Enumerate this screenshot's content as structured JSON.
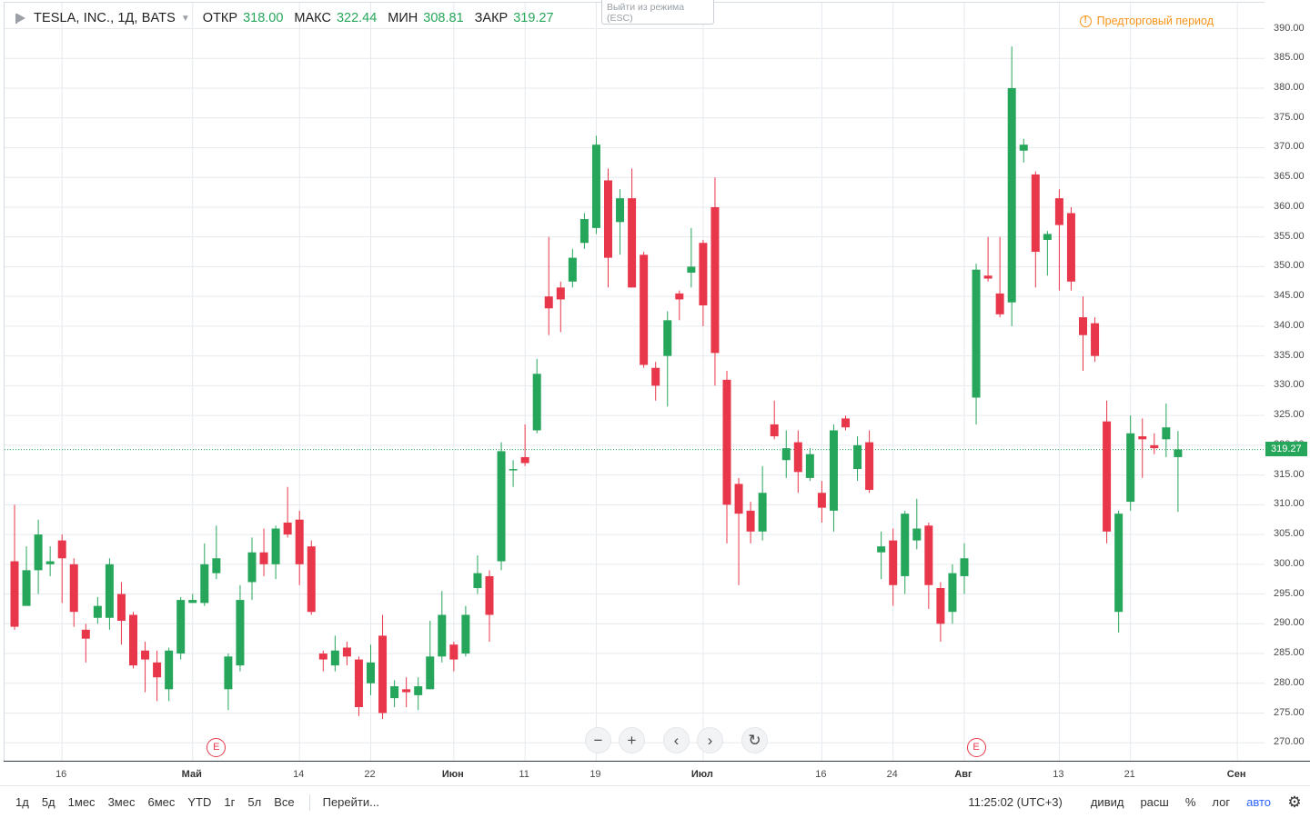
{
  "header": {
    "symbol": "TESLA, INC., 1Д, BATS",
    "ohlc": [
      {
        "label": "ОТКР",
        "value": "318.00"
      },
      {
        "label": "МАКС",
        "value": "322.44"
      },
      {
        "label": "МИН",
        "value": "308.81"
      },
      {
        "label": "ЗАКР",
        "value": "319.27"
      }
    ],
    "exit_tip": "Выйти из режима (ESC)",
    "premarket": "Предторговый период",
    "premarket_icon": "warning-icon"
  },
  "price_axis": {
    "labels": [
      "390.00",
      "385.00",
      "380.00",
      "375.00",
      "370.00",
      "365.00",
      "360.00",
      "355.00",
      "350.00",
      "345.00",
      "340.00",
      "335.00",
      "330.00",
      "325.00",
      "320.00",
      "315.00",
      "310.00",
      "305.00",
      "300.00",
      "295.00",
      "290.00",
      "285.00",
      "280.00",
      "275.00",
      "270.00"
    ],
    "last_price": "319.27"
  },
  "time_axis": {
    "labels": [
      {
        "text": "16",
        "index": 4,
        "bold": false
      },
      {
        "text": "Май",
        "index": 15,
        "bold": true
      },
      {
        "text": "14",
        "index": 24,
        "bold": false
      },
      {
        "text": "22",
        "index": 30,
        "bold": false
      },
      {
        "text": "Июн",
        "index": 37,
        "bold": true
      },
      {
        "text": "11",
        "index": 43,
        "bold": false
      },
      {
        "text": "19",
        "index": 49,
        "bold": false
      },
      {
        "text": "Июл",
        "index": 58,
        "bold": true
      },
      {
        "text": "16",
        "index": 68,
        "bold": false
      },
      {
        "text": "24",
        "index": 74,
        "bold": false
      },
      {
        "text": "Авг",
        "index": 80,
        "bold": true
      },
      {
        "text": "13",
        "index": 88,
        "bold": false
      },
      {
        "text": "21",
        "index": 94,
        "bold": false
      },
      {
        "text": "Сен",
        "index": 103,
        "bold": true
      }
    ]
  },
  "earnings_markers": [
    {
      "label": "E",
      "index": 17
    },
    {
      "label": "E",
      "index": 81
    }
  ],
  "nav_controls": [
    {
      "name": "zoom-out-button",
      "glyph": "−"
    },
    {
      "name": "zoom-in-button",
      "glyph": "+"
    },
    {
      "name": "scroll-left-button",
      "glyph": "‹"
    },
    {
      "name": "scroll-right-button",
      "glyph": "›"
    },
    {
      "name": "reset-button",
      "glyph": "↻"
    }
  ],
  "toolbar": {
    "ranges": [
      "1д",
      "5д",
      "1мес",
      "3мес",
      "6мес",
      "YTD",
      "1г",
      "5л",
      "Все"
    ],
    "goto": "Перейти...",
    "time": "11:25:02 (UTC+3)",
    "options": [
      {
        "label": "дивид",
        "active": false
      },
      {
        "label": "расш",
        "active": false
      },
      {
        "label": "%",
        "active": false
      },
      {
        "label": "лог",
        "active": false
      },
      {
        "label": "авто",
        "active": true
      }
    ],
    "settings_icon": "gear-icon"
  },
  "colors": {
    "up": "#26a65b",
    "down": "#e8374a",
    "grid": "#e6eaee",
    "highlight": "#ffff66",
    "accent": "#2962ff",
    "premarket": "#f7931a"
  },
  "chart_data": {
    "type": "candlestick",
    "symbol": "TESLA, INC.",
    "interval": "1Д",
    "ylim": [
      268,
      392
    ],
    "last_price": 319.27,
    "highlighted_index": 100,
    "candles": [
      [
        300.5,
        289.5,
        310.0,
        289.0
      ],
      [
        293.0,
        299.0,
        303.0,
        293.5
      ],
      [
        299.0,
        305.0,
        307.5,
        295.0
      ],
      [
        300.0,
        300.5,
        303.0,
        298.0
      ],
      [
        304.0,
        301.0,
        305.0,
        293.5
      ],
      [
        300.0,
        292.0,
        301.0,
        289.5
      ],
      [
        289.0,
        287.5,
        290.0,
        283.5
      ],
      [
        291.0,
        293.0,
        294.5,
        290.0
      ],
      [
        291.0,
        300.0,
        301.0,
        289.0
      ],
      [
        295.0,
        290.5,
        297.0,
        286.5
      ],
      [
        291.5,
        283.0,
        292.0,
        282.5
      ],
      [
        285.5,
        284.0,
        287.0,
        278.5
      ],
      [
        283.5,
        281.0,
        285.5,
        277.0
      ],
      [
        279.0,
        285.5,
        286.0,
        277.0
      ],
      [
        285.0,
        294.0,
        294.5,
        284.0
      ],
      [
        293.5,
        294.0,
        295.0,
        293.5
      ],
      [
        293.5,
        300.0,
        303.5,
        293.0
      ],
      [
        298.5,
        301.0,
        306.5,
        297.5
      ],
      [
        279.0,
        284.5,
        285.0,
        275.5
      ],
      [
        283.0,
        294.0,
        296.5,
        282.0
      ],
      [
        297.0,
        302.0,
        304.5,
        294.0
      ],
      [
        302.0,
        300.0,
        306.0,
        298.0
      ],
      [
        300.0,
        306.0,
        306.5,
        297.5
      ],
      [
        307.0,
        305.0,
        313.0,
        304.5
      ],
      [
        307.5,
        300.0,
        309.0,
        296.5
      ],
      [
        303.0,
        292.0,
        304.0,
        291.5
      ],
      [
        285.0,
        284.0,
        285.5,
        282.0
      ],
      [
        283.0,
        285.5,
        288.0,
        282.0
      ],
      [
        286.0,
        284.5,
        287.0,
        283.0
      ],
      [
        284.0,
        276.0,
        284.5,
        274.5
      ],
      [
        280.0,
        283.5,
        286.5,
        278.0
      ],
      [
        288.0,
        275.0,
        291.5,
        274.0
      ],
      [
        277.5,
        279.5,
        280.5,
        276.0
      ],
      [
        279.0,
        278.5,
        281.0,
        276.0
      ],
      [
        278.0,
        279.5,
        281.0,
        275.5
      ],
      [
        279.0,
        284.5,
        290.5,
        279.0
      ],
      [
        284.5,
        291.5,
        295.5,
        283.5
      ],
      [
        286.5,
        284.0,
        287.0,
        282.0
      ],
      [
        285.0,
        291.5,
        293.0,
        284.5
      ],
      [
        296.0,
        298.5,
        301.5,
        295.0
      ],
      [
        298.0,
        291.5,
        299.0,
        287.0
      ],
      [
        300.5,
        319.0,
        320.5,
        299.0
      ],
      [
        316.0,
        316.0,
        317.5,
        313.0
      ],
      [
        318.0,
        317.0,
        323.5,
        316.5
      ],
      [
        322.5,
        332.0,
        334.5,
        322.0
      ],
      [
        345.0,
        343.0,
        355.0,
        338.5
      ],
      [
        346.5,
        344.5,
        347.5,
        339.0
      ],
      [
        347.5,
        351.5,
        353.0,
        346.5
      ],
      [
        354.0,
        358.0,
        359.0,
        353.0
      ],
      [
        356.5,
        370.5,
        372.0,
        355.5
      ],
      [
        364.5,
        351.5,
        366.5,
        346.5
      ],
      [
        357.5,
        361.5,
        363.0,
        352.0
      ],
      [
        361.5,
        346.5,
        366.5,
        346.5
      ],
      [
        352.0,
        333.5,
        352.5,
        333.0
      ],
      [
        333.0,
        330.0,
        334.0,
        327.5
      ],
      [
        335.0,
        341.0,
        342.5,
        326.5
      ],
      [
        345.5,
        344.5,
        346.0,
        341.0
      ],
      [
        349.0,
        350.0,
        356.5,
        346.5
      ],
      [
        354.0,
        343.5,
        354.5,
        340.0
      ],
      [
        360.0,
        335.5,
        365.0,
        330.0
      ],
      [
        331.0,
        310.0,
        332.5,
        303.5
      ],
      [
        313.5,
        308.5,
        314.5,
        296.5
      ],
      [
        309.0,
        305.5,
        310.5,
        303.5
      ],
      [
        305.5,
        312.0,
        316.5,
        304.0
      ],
      [
        323.5,
        321.5,
        327.5,
        321.0
      ],
      [
        317.5,
        319.5,
        322.5,
        314.5
      ],
      [
        320.5,
        315.5,
        322.5,
        312.0
      ],
      [
        314.5,
        318.5,
        319.5,
        314.0
      ],
      [
        312.0,
        309.5,
        314.0,
        307.0
      ],
      [
        309.0,
        322.5,
        323.5,
        305.5
      ],
      [
        324.5,
        323.0,
        325.0,
        322.5
      ],
      [
        316.0,
        320.0,
        321.5,
        314.0
      ],
      [
        320.5,
        312.5,
        322.5,
        312.0
      ],
      [
        302.0,
        303.0,
        305.5,
        297.5
      ],
      [
        304.0,
        296.5,
        306.0,
        293.0
      ],
      [
        298.0,
        308.5,
        309.0,
        295.0
      ],
      [
        304.0,
        306.0,
        311.0,
        302.5
      ],
      [
        306.5,
        296.5,
        307.0,
        292.5
      ],
      [
        296.0,
        290.0,
        297.0,
        287.0
      ],
      [
        292.0,
        298.5,
        300.0,
        290.0
      ],
      [
        298.0,
        301.0,
        303.5,
        295.0
      ],
      [
        328.0,
        349.5,
        350.5,
        323.5
      ],
      [
        348.5,
        348.0,
        355.0,
        347.5
      ],
      [
        345.5,
        342.0,
        355.0,
        341.5
      ],
      [
        344.0,
        380.0,
        387.0,
        340.0
      ],
      [
        369.5,
        370.5,
        371.5,
        367.5
      ],
      [
        365.5,
        352.5,
        366.0,
        346.5
      ],
      [
        354.5,
        355.5,
        356.0,
        348.5
      ],
      [
        361.5,
        357.0,
        363.0,
        346.0
      ],
      [
        359.0,
        347.5,
        360.0,
        346.0
      ],
      [
        341.5,
        338.5,
        345.0,
        332.5
      ],
      [
        340.5,
        335.0,
        341.5,
        334.0
      ],
      [
        324.0,
        305.5,
        327.5,
        303.5
      ],
      [
        292.0,
        308.5,
        309.0,
        288.5
      ],
      [
        310.5,
        322.0,
        325.0,
        309.0
      ],
      [
        321.5,
        321.0,
        324.5,
        314.5
      ],
      [
        320.0,
        319.5,
        322.0,
        318.5
      ],
      [
        321.0,
        323.0,
        327.0,
        318.0
      ],
      [
        318.0,
        319.3,
        322.4,
        308.8
      ]
    ]
  }
}
